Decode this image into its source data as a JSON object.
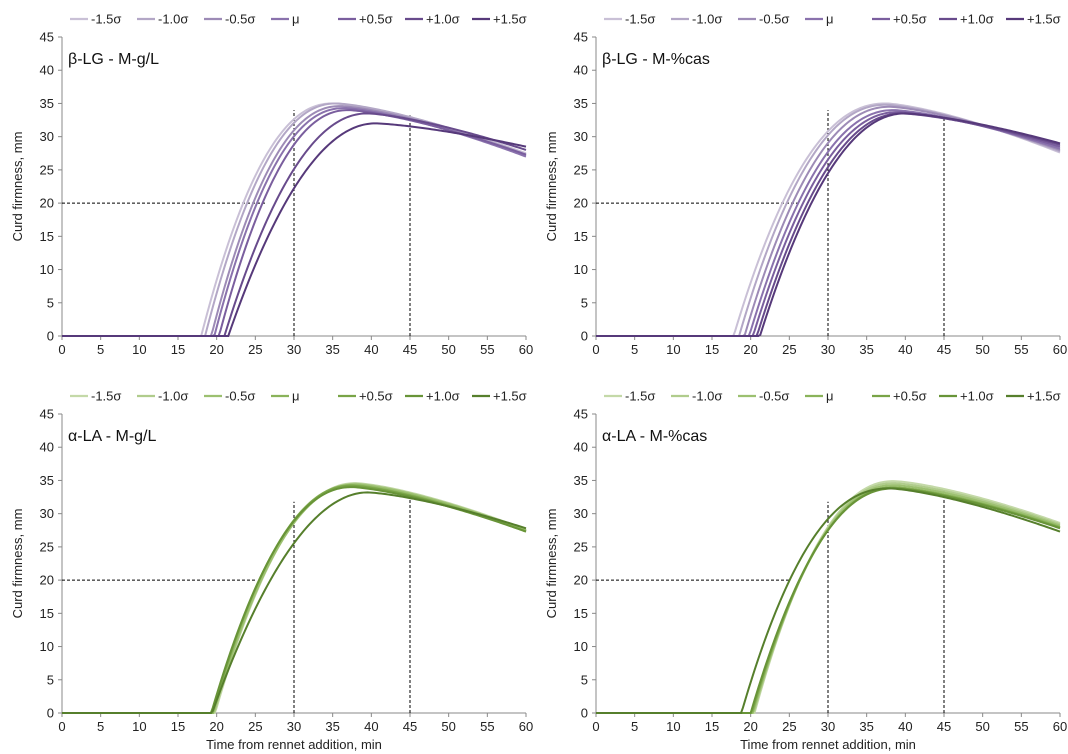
{
  "chart_data": [
    {
      "type": "line",
      "title": "β-LG - M-g/L",
      "xlabel": "",
      "ylabel": "Curd firmness, mm",
      "xlim": [
        0,
        60
      ],
      "ylim": [
        0,
        45
      ],
      "xticks": [
        0,
        5,
        10,
        15,
        20,
        25,
        30,
        35,
        40,
        45,
        50,
        55,
        60
      ],
      "yticks": [
        0,
        5,
        10,
        15,
        20,
        25,
        30,
        35,
        40,
        45
      ],
      "grid": false,
      "legend": "top",
      "reference_lines": {
        "horizontal": {
          "y": 20,
          "x_from": 0,
          "x_to": 26.5
        },
        "vertical": [
          {
            "x": 30,
            "y_to": 34
          },
          {
            "x": 45,
            "y_to": 33.2
          }
        ]
      },
      "series": [
        {
          "name": "-1.5σ",
          "color": "#c9c0d6",
          "lag": 18.0,
          "amax": 35.0,
          "tmax": 35.0,
          "a60": 27.5,
          "p": 0.7
        },
        {
          "name": "-1.0σ",
          "color": "#b3a7c6",
          "lag": 18.5,
          "amax": 35.0,
          "tmax": 35.5,
          "a60": 27.3,
          "p": 0.7
        },
        {
          "name": "-0.5σ",
          "color": "#9d8bb6",
          "lag": 19.3,
          "amax": 34.6,
          "tmax": 36.0,
          "a60": 27.2,
          "p": 0.7
        },
        {
          "name": "μ",
          "color": "#8a72ad",
          "lag": 19.7,
          "amax": 34.3,
          "tmax": 36.5,
          "a60": 27.0,
          "p": 0.7
        },
        {
          "name": "+0.5σ",
          "color": "#7a5e9e",
          "lag": 20.3,
          "amax": 34.0,
          "tmax": 37.0,
          "a60": 27.3,
          "p": 0.72
        },
        {
          "name": "+1.0σ",
          "color": "#684b8c",
          "lag": 21.0,
          "amax": 33.5,
          "tmax": 39.5,
          "a60": 28.0,
          "p": 0.76
        },
        {
          "name": "+1.5σ",
          "color": "#56397a",
          "lag": 21.5,
          "amax": 32.0,
          "tmax": 40.5,
          "a60": 28.5,
          "p": 0.8
        }
      ]
    },
    {
      "type": "line",
      "title": "β-LG - M-%cas",
      "xlabel": "",
      "ylabel": "Curd firmness, mm",
      "xlim": [
        0,
        60
      ],
      "ylim": [
        0,
        45
      ],
      "xticks": [
        0,
        5,
        10,
        15,
        20,
        25,
        30,
        35,
        40,
        45,
        50,
        55,
        60
      ],
      "yticks": [
        0,
        5,
        10,
        15,
        20,
        25,
        30,
        35,
        40,
        45
      ],
      "grid": false,
      "legend": "top",
      "reference_lines": {
        "horizontal": {
          "y": 20,
          "x_from": 0,
          "x_to": 26.5
        },
        "vertical": [
          {
            "x": 30,
            "y_to": 34
          },
          {
            "x": 45,
            "y_to": 33.8
          }
        ]
      },
      "series": [
        {
          "name": "-1.5σ",
          "color": "#c9c0d6",
          "lag": 17.8,
          "amax": 35.0,
          "tmax": 37.5,
          "a60": 27.6,
          "p": 0.7
        },
        {
          "name": "-1.0σ",
          "color": "#b3a7c6",
          "lag": 18.5,
          "amax": 34.8,
          "tmax": 37.5,
          "a60": 27.8,
          "p": 0.71
        },
        {
          "name": "-0.5σ",
          "color": "#9d8bb6",
          "lag": 19.2,
          "amax": 34.5,
          "tmax": 38.0,
          "a60": 28.0,
          "p": 0.72
        },
        {
          "name": "μ",
          "color": "#8a72ad",
          "lag": 19.8,
          "amax": 34.0,
          "tmax": 38.5,
          "a60": 28.2,
          "p": 0.73
        },
        {
          "name": "+0.5σ",
          "color": "#7a5e9e",
          "lag": 20.3,
          "amax": 33.7,
          "tmax": 39.0,
          "a60": 28.5,
          "p": 0.74
        },
        {
          "name": "+1.0σ",
          "color": "#684b8c",
          "lag": 20.8,
          "amax": 33.5,
          "tmax": 39.5,
          "a60": 28.8,
          "p": 0.75
        },
        {
          "name": "+1.5σ",
          "color": "#56397a",
          "lag": 21.2,
          "amax": 33.5,
          "tmax": 40.0,
          "a60": 29.0,
          "p": 0.76
        }
      ]
    },
    {
      "type": "line",
      "title": "α-LA - M-g/L",
      "xlabel": "Time from rennet addition, min",
      "ylabel": "Curd firmness, mm",
      "xlim": [
        0,
        60
      ],
      "ylim": [
        0,
        45
      ],
      "xticks": [
        0,
        5,
        10,
        15,
        20,
        25,
        30,
        35,
        40,
        45,
        50,
        55,
        60
      ],
      "yticks": [
        0,
        5,
        10,
        15,
        20,
        25,
        30,
        35,
        40,
        45
      ],
      "grid": false,
      "legend": "top",
      "reference_lines": {
        "horizontal": {
          "y": 20,
          "x_from": 0,
          "x_to": 25
        },
        "vertical": [
          {
            "x": 30,
            "y_to": 31.8
          },
          {
            "x": 45,
            "y_to": 33.2
          }
        ]
      },
      "series": [
        {
          "name": "-1.5σ",
          "color": "#c4d9a8",
          "lag": 19.8,
          "amax": 34.6,
          "tmax": 38.0,
          "a60": 27.6,
          "p": 0.73
        },
        {
          "name": "-1.0σ",
          "color": "#b0cc8c",
          "lag": 19.7,
          "amax": 34.5,
          "tmax": 38.0,
          "a60": 27.5,
          "p": 0.73
        },
        {
          "name": "-0.5σ",
          "color": "#9cc070",
          "lag": 19.6,
          "amax": 34.4,
          "tmax": 38.0,
          "a60": 27.5,
          "p": 0.73
        },
        {
          "name": "μ",
          "color": "#8ab35a",
          "lag": 19.5,
          "amax": 34.3,
          "tmax": 37.5,
          "a60": 27.4,
          "p": 0.73
        },
        {
          "name": "+0.5σ",
          "color": "#79a447",
          "lag": 19.4,
          "amax": 34.2,
          "tmax": 37.5,
          "a60": 27.3,
          "p": 0.73
        },
        {
          "name": "+1.0σ",
          "color": "#689438",
          "lag": 19.3,
          "amax": 34.0,
          "tmax": 37.5,
          "a60": 27.3,
          "p": 0.73
        },
        {
          "name": "+1.5σ",
          "color": "#567f2c",
          "lag": 19.4,
          "amax": 33.2,
          "tmax": 39.5,
          "a60": 27.8,
          "p": 0.82
        }
      ]
    },
    {
      "type": "line",
      "title": "α-LA - M-%cas",
      "xlabel": "Time from rennet addition, min",
      "ylabel": "Curd firmness, mm",
      "xlim": [
        0,
        60
      ],
      "ylim": [
        0,
        45
      ],
      "xticks": [
        0,
        5,
        10,
        15,
        20,
        25,
        30,
        35,
        40,
        45,
        50,
        55,
        60
      ],
      "yticks": [
        0,
        5,
        10,
        15,
        20,
        25,
        30,
        35,
        40,
        45
      ],
      "grid": false,
      "legend": "top",
      "reference_lines": {
        "horizontal": {
          "y": 20,
          "x_from": 0,
          "x_to": 25
        },
        "vertical": [
          {
            "x": 30,
            "y_to": 31.8
          },
          {
            "x": 45,
            "y_to": 33.5
          }
        ]
      },
      "series": [
        {
          "name": "-1.5σ",
          "color": "#c4d9a8",
          "lag": 20.5,
          "amax": 34.9,
          "tmax": 38.5,
          "a60": 28.6,
          "p": 0.72
        },
        {
          "name": "-1.0σ",
          "color": "#b0cc8c",
          "lag": 20.4,
          "amax": 34.6,
          "tmax": 38.5,
          "a60": 28.4,
          "p": 0.72
        },
        {
          "name": "-0.5σ",
          "color": "#9cc070",
          "lag": 20.3,
          "amax": 34.3,
          "tmax": 38.5,
          "a60": 28.2,
          "p": 0.72
        },
        {
          "name": "μ",
          "color": "#8ab35a",
          "lag": 20.2,
          "amax": 34.0,
          "tmax": 38.5,
          "a60": 28.0,
          "p": 0.72
        },
        {
          "name": "+0.5σ",
          "color": "#79a447",
          "lag": 20.1,
          "amax": 33.9,
          "tmax": 38.5,
          "a60": 27.9,
          "p": 0.72
        },
        {
          "name": "+1.0σ",
          "color": "#689438",
          "lag": 20.0,
          "amax": 33.8,
          "tmax": 38.5,
          "a60": 27.8,
          "p": 0.72
        },
        {
          "name": "+1.5σ",
          "color": "#567f2c",
          "lag": 18.8,
          "amax": 33.8,
          "tmax": 38.0,
          "a60": 27.3,
          "p": 0.66
        }
      ]
    }
  ]
}
